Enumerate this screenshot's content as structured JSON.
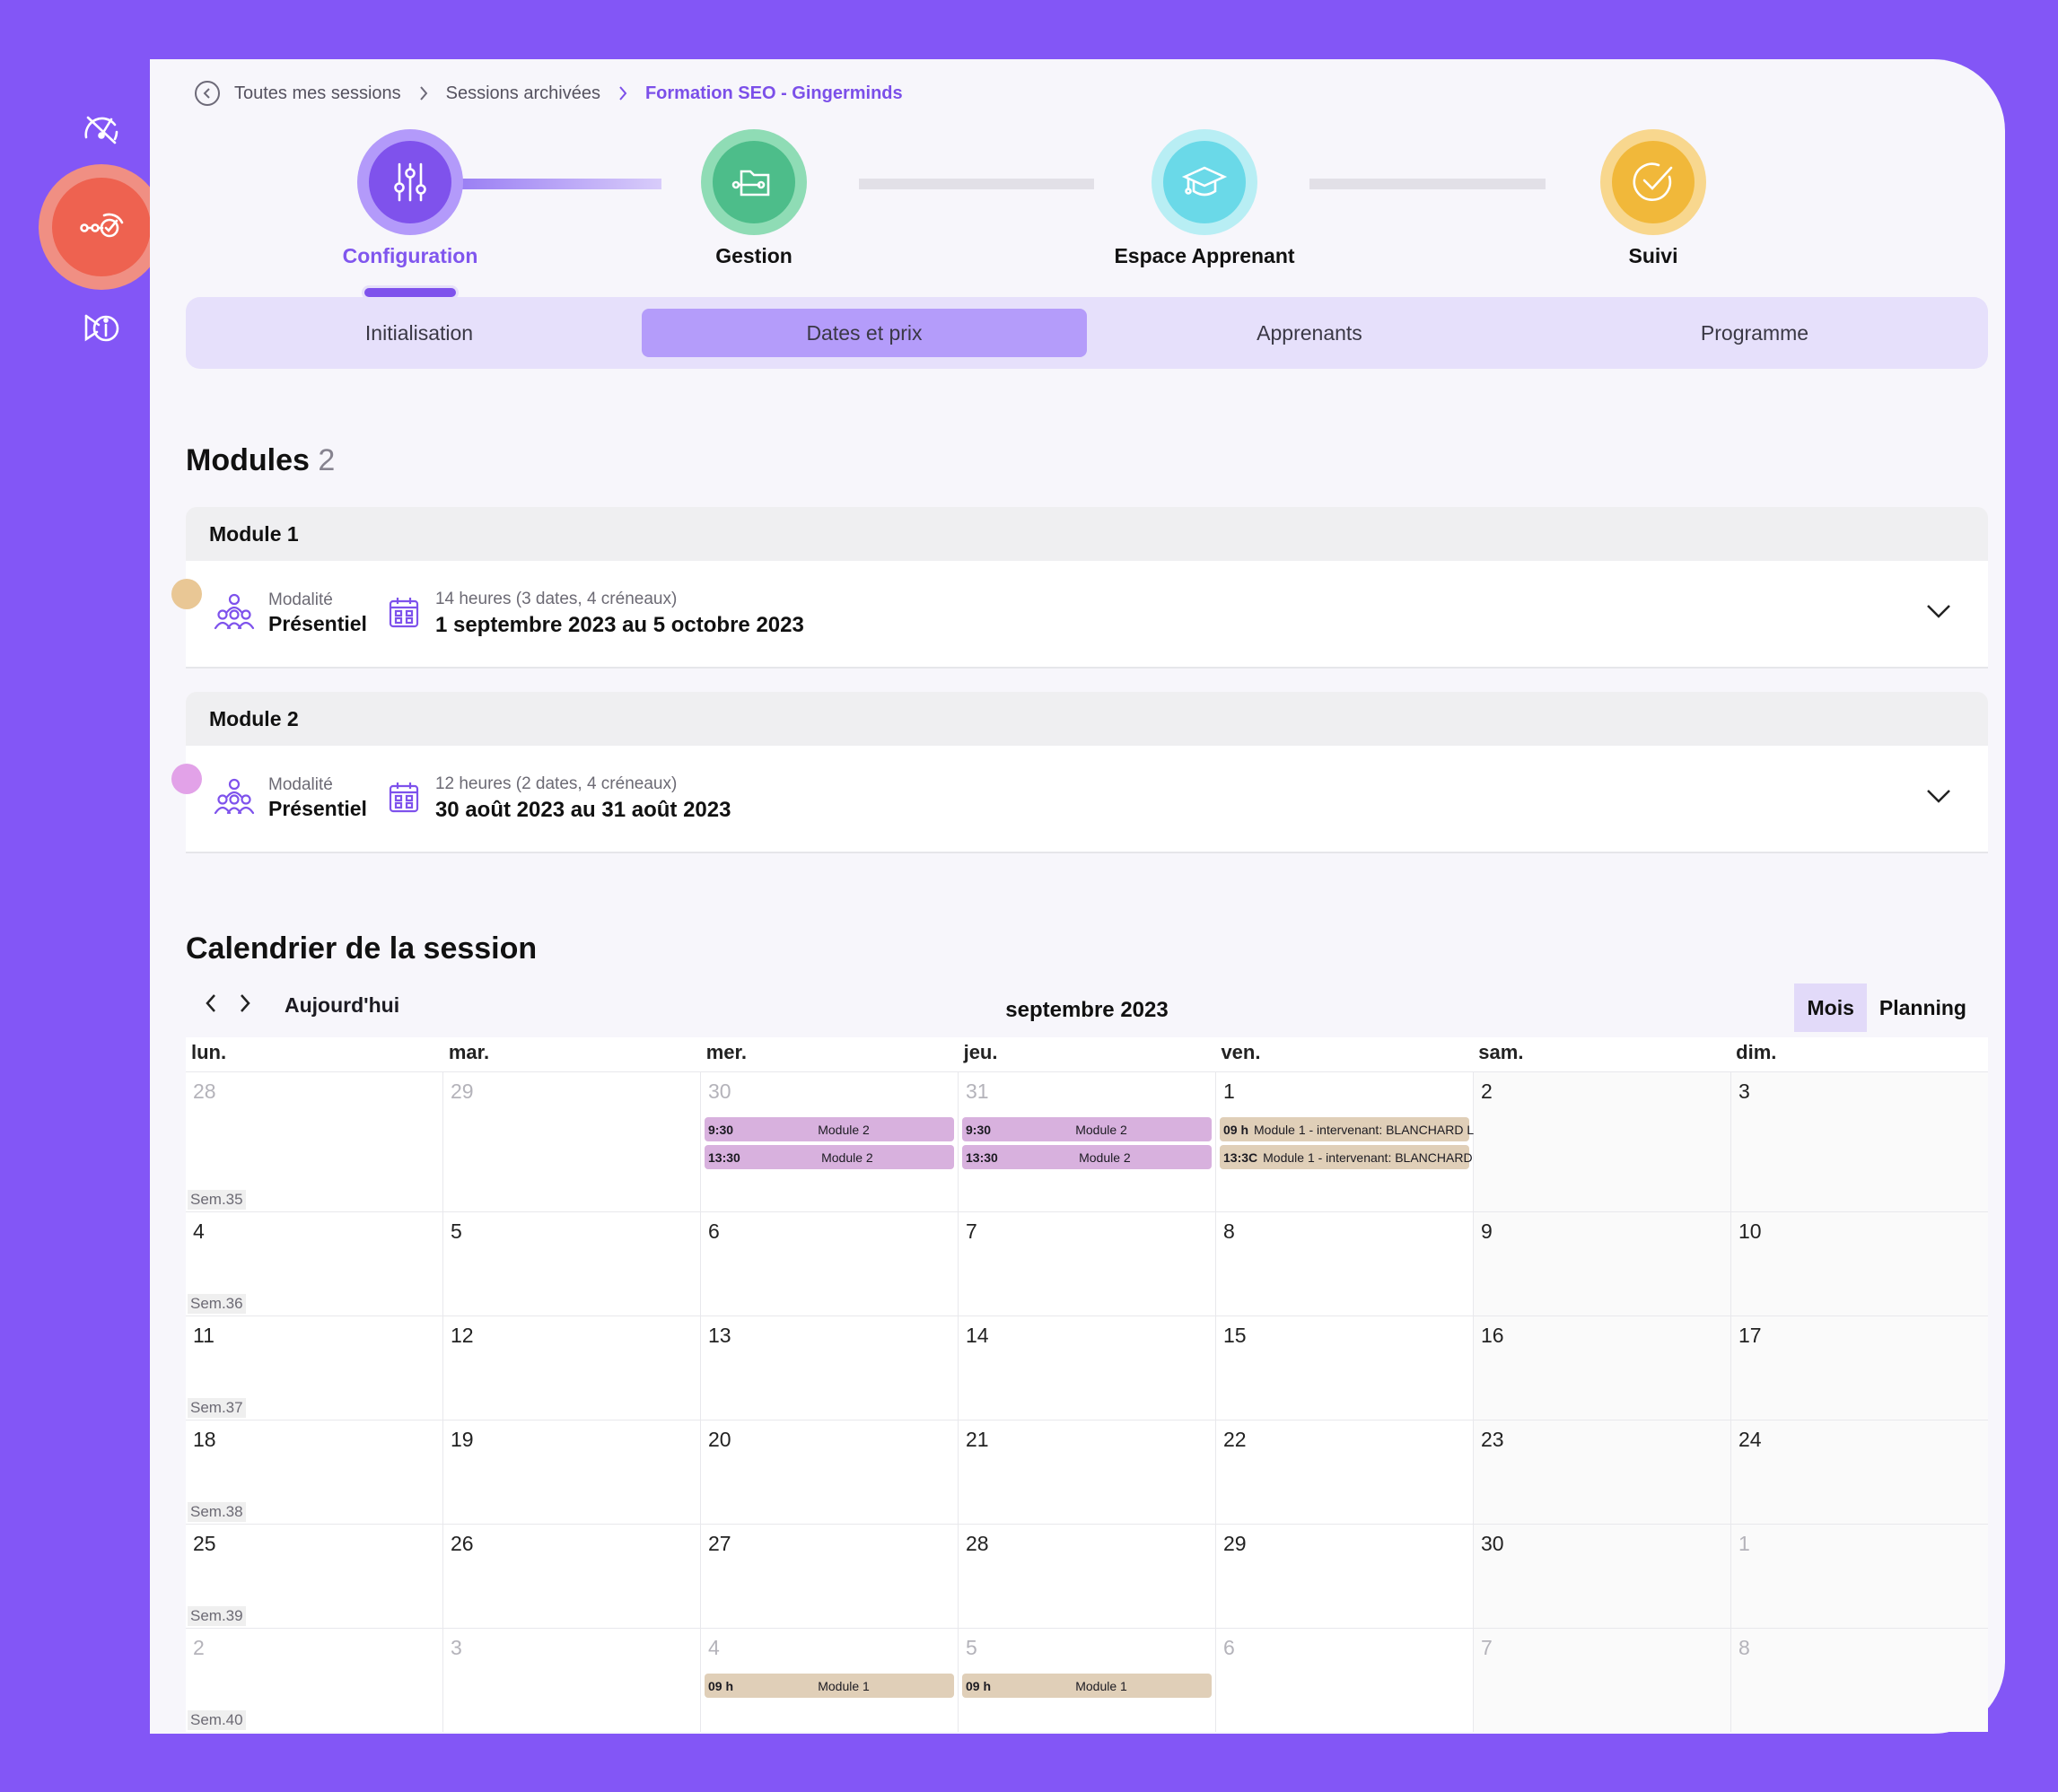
{
  "colors": {
    "background": "#8356f6",
    "accent": "#7e52ec",
    "module1": "#e9c795",
    "module2": "#e2a2e8",
    "step_configuration": "#8b5cf6",
    "step_gestion": "#4fc08d",
    "step_espace": "#6ad9e8",
    "step_suivi": "#f1b83a"
  },
  "rail": {
    "icons": [
      "dashboard-icon",
      "sessions-icon",
      "info-icon"
    ]
  },
  "breadcrumb": {
    "items": [
      "Toutes mes sessions",
      "Sessions archivées",
      "Formation SEO - Gingerminds"
    ]
  },
  "stepper": {
    "steps": [
      "Configuration",
      "Gestion",
      "Espace Apprenant",
      "Suivi"
    ],
    "active": "Configuration"
  },
  "subtabs": {
    "items": [
      "Initialisation",
      "Dates et prix",
      "Apprenants",
      "Programme"
    ],
    "active": "Dates et prix"
  },
  "modules": {
    "title": "Modules",
    "count": "2",
    "list": [
      {
        "name": "Module 1",
        "mode_label": "Modalité",
        "mode": "Présentiel",
        "summary": "14 heures (3 dates, 4 créneaux)",
        "range": "1 septembre 2023 au 5 octobre 2023"
      },
      {
        "name": "Module 2",
        "mode_label": "Modalité",
        "mode": "Présentiel",
        "summary": "12 heures (2 dates, 4 créneaux)",
        "range": "30 août 2023 au 31 août 2023"
      }
    ]
  },
  "calendar": {
    "title": "Calendrier de la session",
    "today": "Aujourd'hui",
    "month": "septembre 2023",
    "views": [
      "Mois",
      "Planning"
    ],
    "active_view": "Mois",
    "weekdays": [
      "lun.",
      "mar.",
      "mer.",
      "jeu.",
      "ven.",
      "sam.",
      "dim."
    ],
    "weeks": [
      {
        "sem": "Sem.35",
        "days": [
          "28",
          "29",
          "30",
          "31",
          "1",
          "2",
          "3"
        ],
        "out": [
          0,
          1,
          2,
          3
        ]
      },
      {
        "sem": "Sem.36",
        "days": [
          "4",
          "5",
          "6",
          "7",
          "8",
          "9",
          "10"
        ],
        "out": []
      },
      {
        "sem": "Sem.37",
        "days": [
          "11",
          "12",
          "13",
          "14",
          "15",
          "16",
          "17"
        ],
        "out": []
      },
      {
        "sem": "Sem.38",
        "days": [
          "18",
          "19",
          "20",
          "21",
          "22",
          "23",
          "24"
        ],
        "out": []
      },
      {
        "sem": "Sem.39",
        "days": [
          "25",
          "26",
          "27",
          "28",
          "29",
          "30",
          "1"
        ],
        "out": [
          6
        ]
      },
      {
        "sem": "Sem.40",
        "days": [
          "2",
          "3",
          "4",
          "5",
          "6",
          "7",
          "8"
        ],
        "out": [
          0,
          1,
          2,
          3,
          4,
          5,
          6
        ]
      }
    ],
    "events": [
      {
        "week": 0,
        "day": 2,
        "row": 0,
        "time": "9:30",
        "label": "Module 2",
        "module": "m2"
      },
      {
        "week": 0,
        "day": 2,
        "row": 1,
        "time": "13:30",
        "label": "Module 2",
        "module": "m2"
      },
      {
        "week": 0,
        "day": 3,
        "row": 0,
        "time": "9:30",
        "label": "Module 2",
        "module": "m2"
      },
      {
        "week": 0,
        "day": 3,
        "row": 1,
        "time": "13:30",
        "label": "Module 2",
        "module": "m2"
      },
      {
        "week": 0,
        "day": 4,
        "row": 0,
        "time": "09 h",
        "label": "Module 1 - intervenant: BLANCHARD L",
        "module": "m1"
      },
      {
        "week": 0,
        "day": 4,
        "row": 1,
        "time": "13:3C",
        "label": "Module 1 - intervenant: BLANCHARD",
        "module": "m1"
      },
      {
        "week": 5,
        "day": 2,
        "row": 0,
        "time": "09 h",
        "label": "Module 1",
        "module": "m1"
      },
      {
        "week": 5,
        "day": 3,
        "row": 0,
        "time": "09 h",
        "label": "Module 1",
        "module": "m1"
      }
    ]
  }
}
